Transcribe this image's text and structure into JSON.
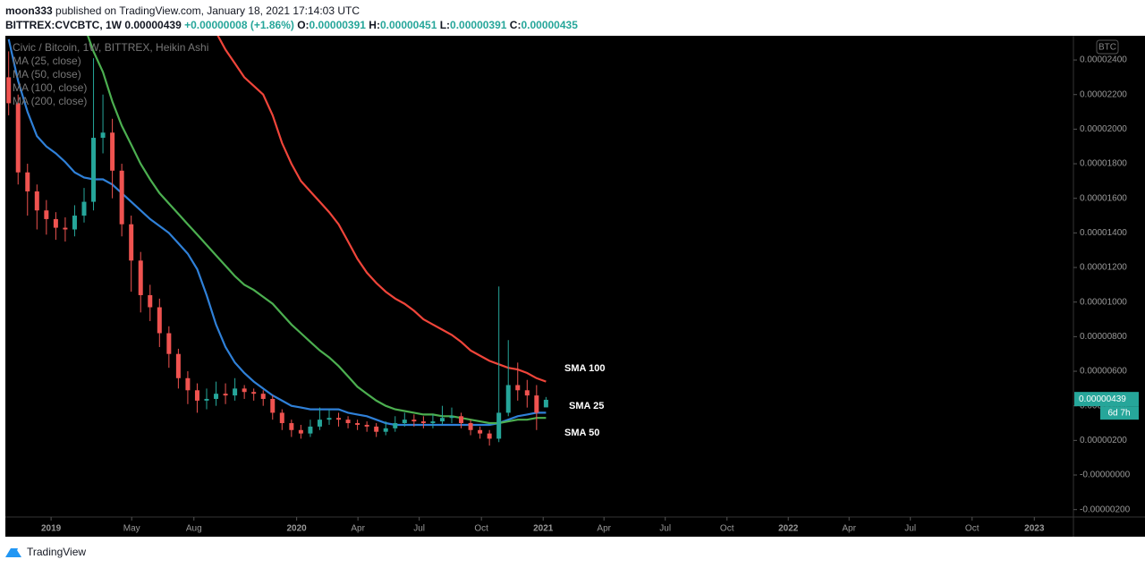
{
  "header": {
    "author": "moon333",
    "published": "published on TradingView.com, January 18, 2021 17:14:03 UTC",
    "symbol": "BITTREX:CVCBTC, 1W",
    "price": "0.00000439",
    "change": "+0.00000008 (+1.86%)",
    "ohlc": [
      {
        "label": "O:",
        "value": "0.00000391"
      },
      {
        "label": "H:",
        "value": "0.00000451"
      },
      {
        "label": "L:",
        "value": "0.00000391"
      },
      {
        "label": "C:",
        "value": "0.00000435"
      }
    ]
  },
  "chart_data": {
    "type": "candlestick",
    "title": "Civic / Bitcoin, 1W, BITTREX, Heikin Ashi",
    "indicators": [
      "MA (25, close)",
      "MA (50, close)",
      "MA (100, close)",
      "MA (200, close)"
    ],
    "axis_unit": "BTC",
    "annotations": [
      "SMA 100",
      "SMA 25",
      "SMA 50"
    ],
    "last_price": {
      "value": 4.39e-06,
      "label": "0.00000439"
    },
    "countdown": "6d 7h",
    "up_color": "#26a69a",
    "down_color": "#ef5350",
    "grid": false,
    "xlim": [
      -9.7,
      216.9
    ],
    "xticks": [
      {
        "value": 0,
        "label": "2019"
      },
      {
        "value": 17.1,
        "label": "May"
      },
      {
        "value": 30.3,
        "label": "Aug"
      },
      {
        "value": 52.1,
        "label": "2020"
      },
      {
        "value": 65.1,
        "label": "Apr"
      },
      {
        "value": 78.1,
        "label": "Jul"
      },
      {
        "value": 91.3,
        "label": "Oct"
      },
      {
        "value": 104.4,
        "label": "2021"
      },
      {
        "value": 117.3,
        "label": "Apr"
      },
      {
        "value": 130.3,
        "label": "Jul"
      },
      {
        "value": 143.4,
        "label": "Oct"
      },
      {
        "value": 156.4,
        "label": "2022"
      },
      {
        "value": 169.3,
        "label": "Apr"
      },
      {
        "value": 182.3,
        "label": "Jul"
      },
      {
        "value": 195.4,
        "label": "Oct"
      },
      {
        "value": 208.6,
        "label": "2023"
      }
    ],
    "ylim": [
      -2.43e-06,
      2.54e-05
    ],
    "yticks": [
      {
        "value": 2.4e-05,
        "label": "0.00002400"
      },
      {
        "value": 2.2e-05,
        "label": "0.00002200"
      },
      {
        "value": 2e-05,
        "label": "0.00002000"
      },
      {
        "value": 1.8e-05,
        "label": "0.00001800"
      },
      {
        "value": 1.6e-05,
        "label": "0.00001600"
      },
      {
        "value": 1.4e-05,
        "label": "0.00001400"
      },
      {
        "value": 1.2e-05,
        "label": "0.00001200"
      },
      {
        "value": 1e-05,
        "label": "0.00001000"
      },
      {
        "value": 8e-06,
        "label": "0.00000800"
      },
      {
        "value": 6e-06,
        "label": "0.00000600"
      },
      {
        "value": 4e-06,
        "label": "0.00000400"
      },
      {
        "value": 2e-06,
        "label": "0.00000200"
      },
      {
        "value": 0,
        "label": "-0.00000000"
      },
      {
        "value": -2e-06,
        "label": "-0.00000200"
      }
    ],
    "x": [
      -9,
      -7,
      -5,
      -3,
      -1,
      1,
      3,
      5,
      7,
      9,
      11,
      13,
      15,
      17,
      19,
      21,
      23,
      25,
      27,
      29,
      31,
      33,
      35,
      37,
      39,
      41,
      43,
      45,
      47,
      49,
      51,
      53,
      55,
      57,
      59,
      61,
      63,
      65,
      67,
      69,
      71,
      73,
      75,
      77,
      79,
      81,
      83,
      85,
      87,
      89,
      91,
      93,
      95,
      97,
      99,
      101,
      103,
      105
    ],
    "open": [
      2.3e-05,
      2.15e-05,
      1.75e-05,
      1.64e-05,
      1.53e-05,
      1.48e-05,
      1.43e-05,
      1.42e-05,
      1.5e-05,
      1.58e-05,
      1.95e-05,
      1.98e-05,
      1.76e-05,
      1.45e-05,
      1.24e-05,
      1.04e-05,
      9.7e-06,
      8.2e-06,
      7e-06,
      5.6e-06,
      4.9e-06,
      4.3e-06,
      4.4e-06,
      4.7e-06,
      4.6e-06,
      5e-06,
      4.8e-06,
      4.7e-06,
      4.4e-06,
      3.6e-06,
      3e-06,
      2.6e-06,
      2.4e-06,
      2.8e-06,
      3.2e-06,
      3.3e-06,
      3.2e-06,
      3e-06,
      2.9e-06,
      2.8e-06,
      2.5e-06,
      2.7e-06,
      3e-06,
      3.2e-06,
      3.1e-06,
      3e-06,
      3.1e-06,
      3.3e-06,
      3.4e-06,
      3e-06,
      2.6e-06,
      2.4e-06,
      2.1e-06,
      3.6e-06,
      5.2e-06,
      4.9e-06,
      4.6e-06,
      3.91e-06
    ],
    "high": [
      2.45e-05,
      2.2e-05,
      1.8e-05,
      1.68e-05,
      1.59e-05,
      1.52e-05,
      1.49e-05,
      1.56e-05,
      1.66e-05,
      2.41e-05,
      2.2e-05,
      2.06e-05,
      1.8e-05,
      1.5e-05,
      1.29e-05,
      1.1e-05,
      1.02e-05,
      8.6e-06,
      7.3e-06,
      6e-06,
      5.3e-06,
      5e-06,
      5.4e-06,
      5.3e-06,
      5.6e-06,
      5.2e-06,
      5e-06,
      4.9e-06,
      4.6e-06,
      3.8e-06,
      3.2e-06,
      2.9e-06,
      3.2e-06,
      3.9e-06,
      3.8e-06,
      3.6e-06,
      3.4e-06,
      3.2e-06,
      3.1e-06,
      3e-06,
      3.1e-06,
      3.4e-06,
      3.6e-06,
      3.5e-06,
      3.4e-06,
      3.5e-06,
      4e-06,
      3.9e-06,
      3.6e-06,
      3.2e-06,
      2.8e-06,
      2.6e-06,
      1.09e-05,
      7.8e-06,
      6.5e-06,
      5.5e-06,
      5.2e-06,
      4.51e-06
    ],
    "low": [
      2.08e-05,
      1.68e-05,
      1.5e-05,
      1.42e-05,
      1.39e-05,
      1.36e-05,
      1.35e-05,
      1.38e-05,
      1.46e-05,
      1.53e-05,
      1.86e-05,
      1.6e-05,
      1.38e-05,
      1.06e-05,
      9.4e-06,
      8.9e-06,
      7.4e-06,
      6.2e-06,
      5e-06,
      4.1e-06,
      3.6e-06,
      3.8e-06,
      4e-06,
      4.1e-06,
      4.3e-06,
      4.4e-06,
      4.3e-06,
      4e-06,
      3.2e-06,
      2.6e-06,
      2.2e-06,
      2.1e-06,
      2.2e-06,
      2.6e-06,
      2.9e-06,
      2.8e-06,
      2.7e-06,
      2.6e-06,
      2.5e-06,
      2.2e-06,
      2.3e-06,
      2.5e-06,
      2.8e-06,
      2.8e-06,
      2.7e-06,
      2.7e-06,
      2.9e-06,
      3e-06,
      2.7e-06,
      2.3e-06,
      2.1e-06,
      1.7e-06,
      1.9e-06,
      3.4e-06,
      4.3e-06,
      3.9e-06,
      2.6e-06,
      3.91e-06
    ],
    "close": [
      2.15e-05,
      1.75e-05,
      1.64e-05,
      1.53e-05,
      1.48e-05,
      1.43e-05,
      1.42e-05,
      1.5e-05,
      1.58e-05,
      1.95e-05,
      1.98e-05,
      1.76e-05,
      1.45e-05,
      1.24e-05,
      1.04e-05,
      9.7e-06,
      8.2e-06,
      7e-06,
      5.6e-06,
      4.9e-06,
      4.3e-06,
      4.4e-06,
      4.7e-06,
      4.6e-06,
      5e-06,
      4.8e-06,
      4.7e-06,
      4.4e-06,
      3.6e-06,
      3e-06,
      2.6e-06,
      2.4e-06,
      2.8e-06,
      3.2e-06,
      3.3e-06,
      3.2e-06,
      3e-06,
      2.9e-06,
      2.8e-06,
      2.5e-06,
      2.7e-06,
      3e-06,
      3.2e-06,
      3.1e-06,
      3e-06,
      3.1e-06,
      3.3e-06,
      3.4e-06,
      3e-06,
      2.6e-06,
      2.4e-06,
      2.1e-06,
      3.6e-06,
      5.2e-06,
      4.9e-06,
      4.6e-06,
      3.6e-06,
      4.35e-06
    ],
    "series": [
      {
        "name": "SMA 25",
        "color": "#2f80d8",
        "values": [
          2.52e-05,
          2.28e-05,
          2.1e-05,
          1.96e-05,
          1.9e-05,
          1.86e-05,
          1.81e-05,
          1.75e-05,
          1.72e-05,
          1.71e-05,
          1.71e-05,
          1.68e-05,
          1.63e-05,
          1.58e-05,
          1.53e-05,
          1.48e-05,
          1.44e-05,
          1.4e-05,
          1.34e-05,
          1.28e-05,
          1.19e-05,
          1.04e-05,
          8.7e-06,
          7.4e-06,
          6.5e-06,
          5.9e-06,
          5.4e-06,
          5e-06,
          4.6e-06,
          4.3e-06,
          4e-06,
          3.9e-06,
          3.8e-06,
          3.8e-06,
          3.8e-06,
          3.8e-06,
          3.6e-06,
          3.5e-06,
          3.4e-06,
          3.2e-06,
          3e-06,
          2.9e-06,
          2.9e-06,
          2.9e-06,
          2.9e-06,
          2.9e-06,
          2.9e-06,
          2.9e-06,
          2.9e-06,
          2.9e-06,
          2.9e-06,
          2.9e-06,
          3e-06,
          3.2e-06,
          3.4e-06,
          3.5e-06,
          3.6e-06,
          3.6e-06
        ]
      },
      {
        "name": "SMA 50",
        "color": "#4caf50",
        "values": [
          null,
          null,
          null,
          null,
          null,
          null,
          null,
          null,
          2.6e-05,
          2.45e-05,
          2.33e-05,
          2.16e-05,
          2.02e-05,
          1.91e-05,
          1.8e-05,
          1.71e-05,
          1.63e-05,
          1.57e-05,
          1.51e-05,
          1.45e-05,
          1.39e-05,
          1.33e-05,
          1.27e-05,
          1.21e-05,
          1.15e-05,
          1.1e-05,
          1.07e-05,
          1.03e-05,
          9.9e-06,
          9.3e-06,
          8.7e-06,
          8.2e-06,
          7.7e-06,
          7.2e-06,
          6.8e-06,
          6.3e-06,
          5.7e-06,
          5.1e-06,
          4.7e-06,
          4.3e-06,
          4e-06,
          3.8e-06,
          3.7e-06,
          3.6e-06,
          3.5e-06,
          3.5e-06,
          3.4e-06,
          3.4e-06,
          3.3e-06,
          3.2e-06,
          3.1e-06,
          3e-06,
          3e-06,
          3.1e-06,
          3.2e-06,
          3.2e-06,
          3.3e-06,
          3.3e-06
        ]
      },
      {
        "name": "SMA 100",
        "color": "#f0453a",
        "values": [
          null,
          null,
          null,
          null,
          null,
          null,
          null,
          null,
          null,
          null,
          null,
          null,
          null,
          null,
          null,
          null,
          null,
          null,
          null,
          null,
          null,
          2.65e-05,
          2.56e-05,
          2.46e-05,
          2.38e-05,
          2.3e-05,
          2.25e-05,
          2.2e-05,
          2.08e-05,
          1.92e-05,
          1.8e-05,
          1.7e-05,
          1.64e-05,
          1.58e-05,
          1.52e-05,
          1.45e-05,
          1.35e-05,
          1.25e-05,
          1.17e-05,
          1.11e-05,
          1.06e-05,
          1.02e-05,
          9.9e-06,
          9.5e-06,
          9e-06,
          8.7e-06,
          8.4e-06,
          8.1e-06,
          7.7e-06,
          7.2e-06,
          6.9e-06,
          6.6e-06,
          6.4e-06,
          6.2e-06,
          6.1e-06,
          5.9e-06,
          5.6e-06,
          5.4e-06
        ]
      }
    ]
  },
  "footer": {
    "brand": "TradingView"
  }
}
